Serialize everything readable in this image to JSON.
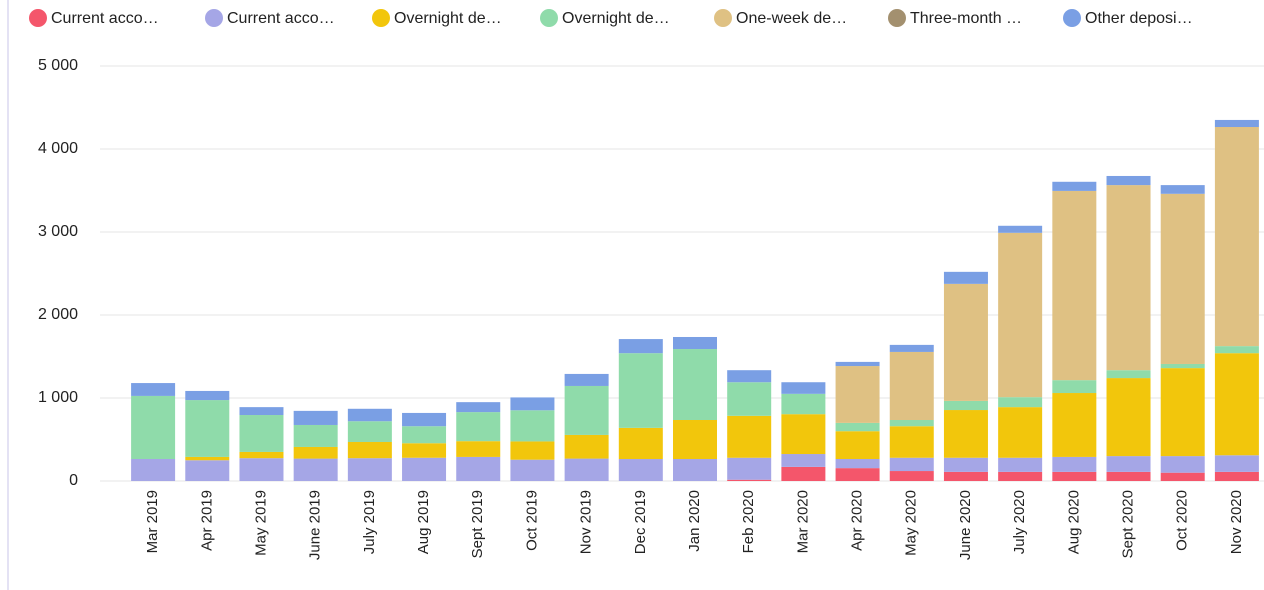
{
  "chart_data": {
    "type": "stacked_bar",
    "categories": [
      "Mar 2019",
      "Apr 2019",
      "May 2019",
      "June 2019",
      "July 2019",
      "Aug 2019",
      "Sept 2019",
      "Oct 2019",
      "Nov 2019",
      "Dec 2019",
      "Jan 2020",
      "Feb 2020",
      "Mar 2020",
      "Apr 2020",
      "May 2020",
      "June 2020",
      "July 2020",
      "Aug 2020",
      "Sept 2020",
      "Oct 2020",
      "Nov 2020"
    ],
    "series": [
      {
        "name": "Current acco…",
        "color": "#f4566b",
        "values": [
          0,
          0,
          0,
          0,
          0,
          0,
          0,
          0,
          0,
          0,
          0,
          15,
          170,
          155,
          120,
          110,
          110,
          110,
          110,
          100,
          110
        ]
      },
      {
        "name": "Current acco…",
        "color": "#a5a6e6",
        "values": [
          265,
          250,
          275,
          270,
          275,
          280,
          290,
          257,
          270,
          265,
          265,
          265,
          155,
          110,
          160,
          170,
          170,
          180,
          190,
          200,
          200
        ]
      },
      {
        "name": "Overnight de…",
        "color": "#f2c60c",
        "values": [
          0,
          40,
          75,
          140,
          195,
          175,
          190,
          220,
          285,
          375,
          470,
          505,
          480,
          335,
          380,
          575,
          610,
          770,
          940,
          1060,
          1230
        ]
      },
      {
        "name": "Overnight de…",
        "color": "#8fdbaa",
        "values": [
          760,
          685,
          445,
          265,
          250,
          205,
          350,
          375,
          590,
          900,
          855,
          405,
          245,
          100,
          75,
          110,
          120,
          155,
          95,
          50,
          85
        ]
      },
      {
        "name": "One-week de…",
        "color": "#dfc183",
        "values": [
          0,
          0,
          0,
          0,
          0,
          0,
          0,
          0,
          0,
          0,
          0,
          0,
          0,
          685,
          820,
          1410,
          1980,
          2280,
          2230,
          2050,
          2640
        ]
      },
      {
        "name": "Three-month …",
        "color": "#a3906f",
        "values": [
          0,
          0,
          0,
          0,
          0,
          0,
          0,
          0,
          0,
          0,
          0,
          0,
          0,
          0,
          0,
          0,
          0,
          0,
          0,
          0,
          0
        ]
      },
      {
        "name": "Other deposi…",
        "color": "#7a9fe4",
        "values": [
          155,
          110,
          95,
          170,
          150,
          160,
          120,
          155,
          145,
          170,
          145,
          145,
          140,
          50,
          85,
          145,
          85,
          110,
          110,
          105,
          85
        ]
      }
    ],
    "ylim": [
      0,
      5000
    ],
    "yticks": [
      0,
      {
        "value": 1000,
        "label": "1 000"
      },
      {
        "value": 2000,
        "label": "2 000"
      },
      {
        "value": 3000,
        "label": "3 000"
      },
      {
        "value": 4000,
        "label": "4 000"
      },
      {
        "value": 5000,
        "label": "5 000"
      }
    ],
    "grid": true
  }
}
